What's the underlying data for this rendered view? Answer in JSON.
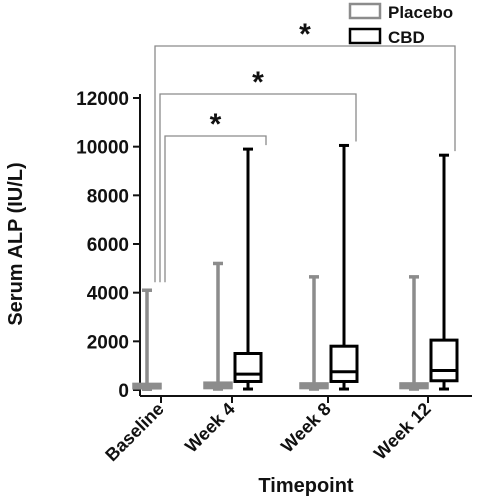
{
  "chart_data": {
    "type": "box",
    "xlabel": "Timepoint",
    "ylabel": "Serum ALP (IU/L)",
    "ylim": [
      0,
      12000
    ],
    "yticks": [
      0,
      2000,
      4000,
      6000,
      8000,
      10000,
      12000
    ],
    "categories": [
      "Baseline",
      "Week 4",
      "Week 8",
      "Week 12"
    ],
    "legend": {
      "placement": "top-right"
    },
    "series": [
      {
        "name": "Placebo",
        "color": "#8c8c8c",
        "boxes": [
          {
            "category": "Baseline",
            "min": 30,
            "q1": 90,
            "median": 150,
            "q3": 230,
            "max": 4100
          },
          {
            "category": "Week 4",
            "min": 40,
            "q1": 100,
            "median": 170,
            "q3": 280,
            "max": 5200
          },
          {
            "category": "Week 8",
            "min": 40,
            "q1": 100,
            "median": 160,
            "q3": 250,
            "max": 4650
          },
          {
            "category": "Week 12",
            "min": 40,
            "q1": 100,
            "median": 160,
            "q3": 250,
            "max": 4650
          }
        ]
      },
      {
        "name": "CBD",
        "color": "#000000",
        "boxes": [
          {
            "category": "Week 4",
            "min": 40,
            "q1": 350,
            "median": 650,
            "q3": 1500,
            "max": 9900
          },
          {
            "category": "Week 8",
            "min": 40,
            "q1": 350,
            "median": 750,
            "q3": 1800,
            "max": 10050
          },
          {
            "category": "Week 12",
            "min": 40,
            "q1": 380,
            "median": 800,
            "q3": 2050,
            "max": 9650
          }
        ]
      }
    ],
    "significance": [
      {
        "from": "Baseline",
        "to": "Week 4",
        "label": "*"
      },
      {
        "from": "Baseline",
        "to": "Week 8",
        "label": "*"
      },
      {
        "from": "Baseline",
        "to": "Week 12",
        "label": "*"
      }
    ]
  }
}
